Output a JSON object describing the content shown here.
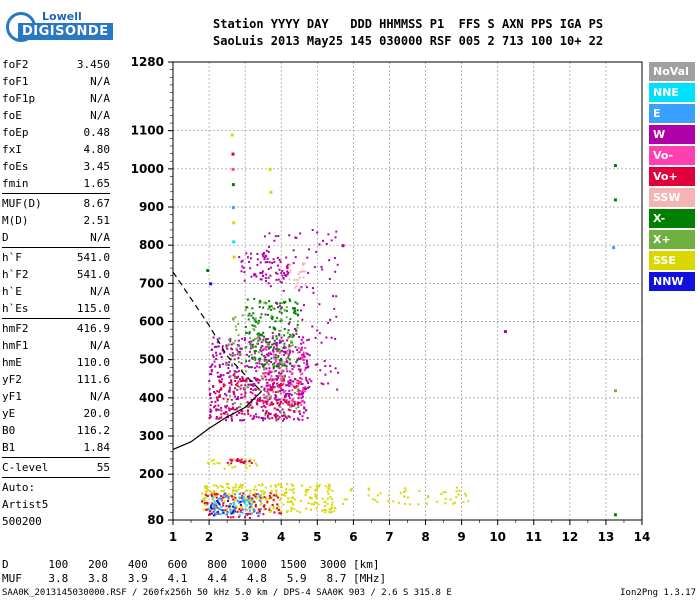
{
  "logo": {
    "line1": "Lowell",
    "line2": "DIGISONDE"
  },
  "header": {
    "labels": "Station YYYY DAY   DDD HHMMSS P1  FFS S AXN PPS IGA PS",
    "values": "SaoLuis 2013 May25 145 030000 RSF 005 2 713 100 10+ 22"
  },
  "params": [
    {
      "k": "foF2",
      "v": "3.450"
    },
    {
      "k": "foF1",
      "v": "N/A"
    },
    {
      "k": "foF1p",
      "v": "N/A"
    },
    {
      "k": "foE",
      "v": "N/A"
    },
    {
      "k": "foEp",
      "v": "0.48"
    },
    {
      "k": "fxI",
      "v": "4.80"
    },
    {
      "k": "foEs",
      "v": "3.45"
    },
    {
      "k": "fmin",
      "v": "1.65"
    },
    {
      "sep": true
    },
    {
      "k": "MUF(D)",
      "v": "8.67"
    },
    {
      "k": "M(D)",
      "v": "2.51"
    },
    {
      "k": "D",
      "v": "N/A"
    },
    {
      "sep": true
    },
    {
      "k": "h`F",
      "v": "541.0"
    },
    {
      "k": "h`F2",
      "v": "541.0"
    },
    {
      "k": "h`E",
      "v": "N/A"
    },
    {
      "k": "h`Es",
      "v": "115.0"
    },
    {
      "sep": true
    },
    {
      "k": "hmF2",
      "v": "416.9"
    },
    {
      "k": "hmF1",
      "v": "N/A"
    },
    {
      "k": "hmE",
      "v": "110.0"
    },
    {
      "k": "yF2",
      "v": "111.6"
    },
    {
      "k": "yF1",
      "v": "N/A"
    },
    {
      "k": "yE",
      "v": "20.0"
    },
    {
      "k": "B0",
      "v": "116.2"
    },
    {
      "k": "B1",
      "v": "1.84"
    },
    {
      "sep": true
    },
    {
      "k": "C-level",
      "v": "55"
    },
    {
      "sep": true
    },
    {
      "k": "Auto:",
      "v": ""
    },
    {
      "k": "Artist5",
      "v": ""
    },
    {
      "k": "500200",
      "v": ""
    }
  ],
  "legend": [
    {
      "label": "NoVal",
      "color": "#a0a0a0"
    },
    {
      "label": "NNE",
      "color": "#00e0ff"
    },
    {
      "label": "E",
      "color": "#3aa0ff"
    },
    {
      "label": "W",
      "color": "#b000a8"
    },
    {
      "label": "Vo-",
      "color": "#ff40b0"
    },
    {
      "label": "Vo+",
      "color": "#e0003a"
    },
    {
      "label": "SSW",
      "color": "#f4b4b4"
    },
    {
      "label": "X-",
      "color": "#008000"
    },
    {
      "label": "X+",
      "color": "#70b040"
    },
    {
      "label": "SSE",
      "color": "#d8d800"
    },
    {
      "label": "NNW",
      "color": "#1010e0"
    }
  ],
  "chart_data": {
    "type": "scatter",
    "x_ticks": [
      1,
      2,
      3,
      4,
      5,
      6,
      7,
      8,
      9,
      10,
      11,
      12,
      13,
      14
    ],
    "y_ticks": [
      80,
      200,
      300,
      400,
      500,
      600,
      700,
      800,
      900,
      1000,
      1100,
      1280
    ],
    "xlim": [
      1,
      14
    ],
    "ylim": [
      80,
      1280
    ],
    "grid": true,
    "profile_solid": [
      [
        1,
        265
      ],
      [
        1.5,
        285
      ],
      [
        2,
        320
      ],
      [
        2.5,
        350
      ],
      [
        3,
        375
      ],
      [
        3.45,
        417
      ]
    ],
    "profile_dashed": [
      [
        1,
        730
      ],
      [
        1.5,
        660
      ],
      [
        2,
        590
      ],
      [
        2.5,
        510
      ],
      [
        3,
        460
      ],
      [
        3.45,
        417
      ]
    ],
    "clusters": [
      {
        "color": "#b000a8",
        "x": [
          2.0,
          4.8
        ],
        "y": [
          340,
          560
        ],
        "n": 520
      },
      {
        "color": "#ff40b0",
        "x": [
          3.5,
          4.7
        ],
        "y": [
          380,
          540
        ],
        "n": 120
      },
      {
        "color": "#e0003a",
        "x": [
          2.0,
          4.5
        ],
        "y": [
          345,
          460
        ],
        "n": 140
      },
      {
        "color": "#008000",
        "x": [
          3.0,
          4.5
        ],
        "y": [
          480,
          660
        ],
        "n": 160
      },
      {
        "color": "#70b040",
        "x": [
          2.5,
          4.5
        ],
        "y": [
          350,
          650
        ],
        "n": 120
      },
      {
        "color": "#b000a8",
        "x": [
          3.4,
          5.6
        ],
        "y": [
          420,
          840
        ],
        "n": 120
      },
      {
        "color": "#b000a8",
        "x": [
          2.8,
          4.2
        ],
        "y": [
          700,
          780
        ],
        "n": 70
      },
      {
        "color": "#f4b4b4",
        "x": [
          4.2,
          4.7
        ],
        "y": [
          680,
          760
        ],
        "n": 25
      },
      {
        "color": "#d8d800",
        "x": [
          1.8,
          5.5
        ],
        "y": [
          100,
          175
        ],
        "n": 260
      },
      {
        "color": "#e0003a",
        "x": [
          1.8,
          4.0
        ],
        "y": [
          85,
          150
        ],
        "n": 120
      },
      {
        "color": "#3aa0ff",
        "x": [
          2.0,
          3.5
        ],
        "y": [
          90,
          150
        ],
        "n": 50
      },
      {
        "color": "#00e0ff",
        "x": [
          2.0,
          3.2
        ],
        "y": [
          95,
          140
        ],
        "n": 30
      },
      {
        "color": "#1010e0",
        "x": [
          2.0,
          3.0
        ],
        "y": [
          90,
          130
        ],
        "n": 20
      },
      {
        "color": "#d8d800",
        "x": [
          5.5,
          9.2
        ],
        "y": [
          120,
          165
        ],
        "n": 50
      },
      {
        "color": "#e0003a",
        "x": [
          2.5,
          3.2
        ],
        "y": [
          225,
          240
        ],
        "n": 20
      },
      {
        "color": "#d8d800",
        "x": [
          1.9,
          3.4
        ],
        "y": [
          210,
          240
        ],
        "n": 20
      }
    ],
    "isolated_points": [
      {
        "x": 2.63,
        "y": 1090,
        "color": "#d8d800"
      },
      {
        "x": 2.65,
        "y": 1040,
        "color": "#e0003a"
      },
      {
        "x": 2.65,
        "y": 1000,
        "color": "#ff40b0"
      },
      {
        "x": 2.66,
        "y": 960,
        "color": "#008000"
      },
      {
        "x": 2.66,
        "y": 900,
        "color": "#3aa0ff"
      },
      {
        "x": 2.67,
        "y": 860,
        "color": "#d8d800"
      },
      {
        "x": 2.67,
        "y": 810,
        "color": "#00e0ff"
      },
      {
        "x": 2.68,
        "y": 770,
        "color": "#d8d800"
      },
      {
        "x": 3.68,
        "y": 1000,
        "color": "#d8d800"
      },
      {
        "x": 3.7,
        "y": 940,
        "color": "#d8d800"
      },
      {
        "x": 10.2,
        "y": 575,
        "color": "#b000a8"
      },
      {
        "x": 13.25,
        "y": 1010,
        "color": "#008000"
      },
      {
        "x": 13.25,
        "y": 920,
        "color": "#008000"
      },
      {
        "x": 13.2,
        "y": 795,
        "color": "#3aa0ff"
      },
      {
        "x": 13.25,
        "y": 420,
        "color": "#70b040"
      },
      {
        "x": 13.25,
        "y": 95,
        "color": "#008000"
      },
      {
        "x": 5.7,
        "y": 800,
        "color": "#b000a8"
      },
      {
        "x": 2.03,
        "y": 700,
        "color": "#1010e0"
      },
      {
        "x": 1.95,
        "y": 735,
        "color": "#008000"
      }
    ]
  },
  "bottom": {
    "row_d": "D      100   200   400   600   800  1000  1500  3000 [km]",
    "row_muf": "MUF    3.8   3.8   3.9   4.1   4.4   4.8   5.9   8.7 [MHz]"
  },
  "footer": "SAA0K_2013145030000.RSF / 260fx256h 50 kHz 5.0 km / DPS-4 SAA0K 903 / 2.6 S 315.8 E",
  "version": "Ion2Png 1.3.17"
}
